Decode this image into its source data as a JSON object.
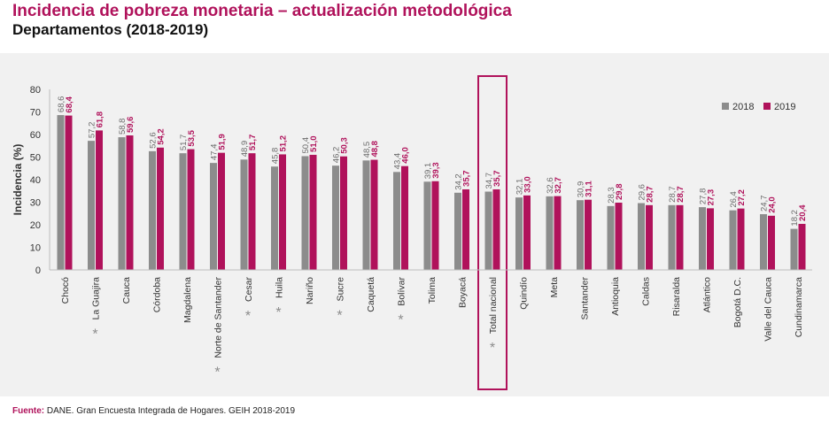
{
  "title": "Incidencia de pobreza monetaria – actualización metodológica",
  "subtitle": "Departamentos (2018-2019)",
  "source": {
    "label": "Fuente:",
    "text": "DANE. Gran Encuesta Integrada de Hogares. GEIH 2018-2019"
  },
  "chart_data": {
    "type": "bar",
    "ylabel": "Incidencia (%)",
    "ylim": [
      0,
      80
    ],
    "yticks": [
      0,
      10,
      20,
      30,
      40,
      50,
      60,
      70,
      80
    ],
    "grid": false,
    "legend_position": "top-right",
    "categories": [
      "Chocó",
      "La Guajira",
      "Cauca",
      "Córdoba",
      "Magdalena",
      "Norte de Santander",
      "Cesar",
      "Huila",
      "Nariño",
      "Sucre",
      "Caquetá",
      "Bolívar",
      "Tolima",
      "Boyacá",
      "Total nacional",
      "Quindío",
      "Meta",
      "Santander",
      "Antioquia",
      "Caldas",
      "Risaralda",
      "Atlántico",
      "Bogotá D.C.",
      "Valle del Cauca",
      "Cundinamarca"
    ],
    "series": [
      {
        "name": "2018",
        "color": "#8c8c8c",
        "values": [
          68.6,
          57.2,
          58.8,
          52.6,
          51.7,
          47.4,
          48.9,
          45.8,
          50.4,
          46.2,
          48.5,
          43.4,
          39.1,
          34.2,
          34.7,
          32.1,
          32.6,
          30.9,
          28.3,
          29.6,
          28.7,
          27.8,
          26.4,
          24.7,
          18.2
        ],
        "labels": [
          "68,6",
          "57,2",
          "58,8",
          "52,6",
          "51,7",
          "47,4",
          "48,9",
          "45,8",
          "50,4",
          "46,2",
          "48,5",
          "43,4",
          "39,1",
          "34,2",
          "34,7",
          "32,1",
          "32,6",
          "30,9",
          "28,3",
          "29,6",
          "28,7",
          "27,8",
          "26,4",
          "24,7",
          "18,2"
        ]
      },
      {
        "name": "2019",
        "color": "#b0125b",
        "values": [
          68.4,
          61.8,
          59.6,
          54.2,
          53.5,
          51.9,
          51.7,
          51.2,
          51.0,
          50.3,
          48.8,
          46.0,
          39.3,
          35.7,
          35.7,
          33.0,
          32.7,
          31.1,
          29.8,
          28.7,
          28.7,
          27.3,
          27.2,
          24.0,
          20.4
        ],
        "labels": [
          "68,4",
          "61,8",
          "59,6",
          "54,2",
          "53,5",
          "51,9",
          "51,7",
          "51,2",
          "51,0",
          "50,3",
          "48,8",
          "46,0",
          "39,3",
          "35,7",
          "35,7",
          "33,0",
          "32,7",
          "31,1",
          "29,8",
          "28,7",
          "28,7",
          "27,3",
          "27,2",
          "24,0",
          "20,4"
        ]
      }
    ],
    "significance_marker": "*",
    "marked_categories": [
      "La Guajira",
      "Norte de Santander",
      "Cesar",
      "Huila",
      "Sucre",
      "Bolívar",
      "Total nacional"
    ],
    "highlighted_category": "Total nacional"
  }
}
